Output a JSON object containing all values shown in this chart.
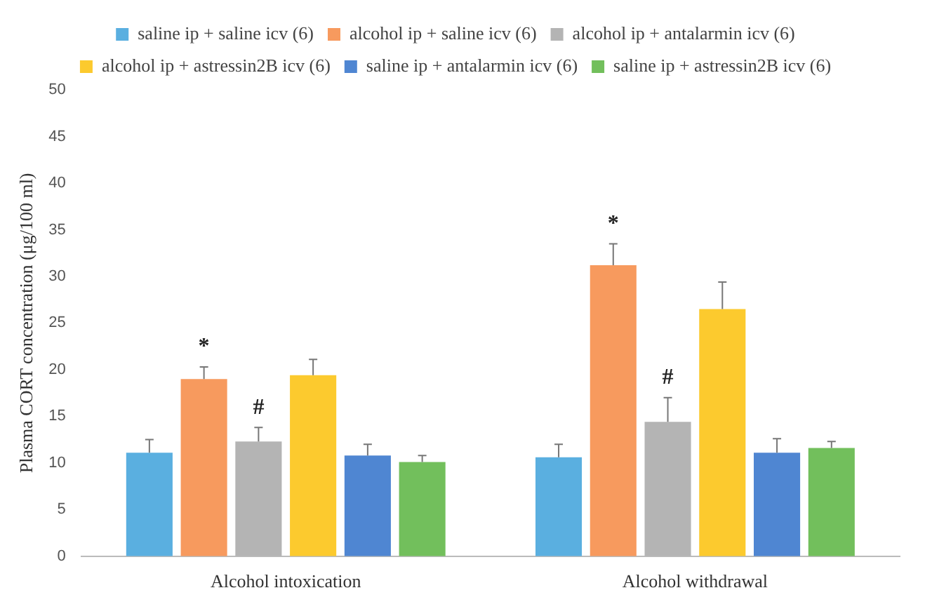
{
  "chart_data": {
    "type": "bar",
    "ylabel": "Plasma CORT concentration (μg/100 ml)",
    "categories": [
      "Alcohol intoxication",
      "Alcohol withdrawal"
    ],
    "series": [
      {
        "name": "saline ip + saline icv (6)",
        "color": "#5aafe0",
        "values": [
          11.1,
          10.6
        ],
        "errors": [
          [
            11.1,
            12.5
          ],
          [
            10.6,
            12.0
          ]
        ]
      },
      {
        "name": "alcohol ip + saline icv (6)",
        "color": "#f79a5e",
        "values": [
          19.0,
          31.2
        ],
        "errors": [
          [
            19.0,
            20.3
          ],
          [
            31.2,
            33.5
          ]
        ]
      },
      {
        "name": "alcohol ip + antalarmin icv (6)",
        "color": "#b4b4b4",
        "values": [
          12.3,
          14.4
        ],
        "errors": [
          [
            12.3,
            13.8
          ],
          [
            14.4,
            17.0
          ]
        ]
      },
      {
        "name": "alcohol ip + astressin2B icv (6)",
        "color": "#fcca2e",
        "values": [
          19.4,
          26.5
        ],
        "errors": [
          [
            19.4,
            21.1
          ],
          [
            26.5,
            29.4
          ]
        ]
      },
      {
        "name": "saline ip + antalarmin icv (6)",
        "color": "#4f86d2",
        "values": [
          10.8,
          11.1
        ],
        "errors": [
          [
            10.8,
            12.0
          ],
          [
            11.1,
            12.6
          ]
        ]
      },
      {
        "name": "saline ip + astressin2B icv (6)",
        "color": "#72bf5c",
        "values": [
          10.1,
          11.6
        ],
        "errors": [
          [
            10.1,
            10.8
          ],
          [
            11.6,
            12.3
          ]
        ]
      }
    ],
    "annotations": [
      "*",
      "#",
      "*",
      "#"
    ],
    "ylim": [
      0,
      50
    ],
    "yticks": [
      0,
      5,
      10,
      15,
      20,
      25,
      30,
      35,
      40,
      45,
      50
    ],
    "grid": false,
    "legend": "top"
  }
}
